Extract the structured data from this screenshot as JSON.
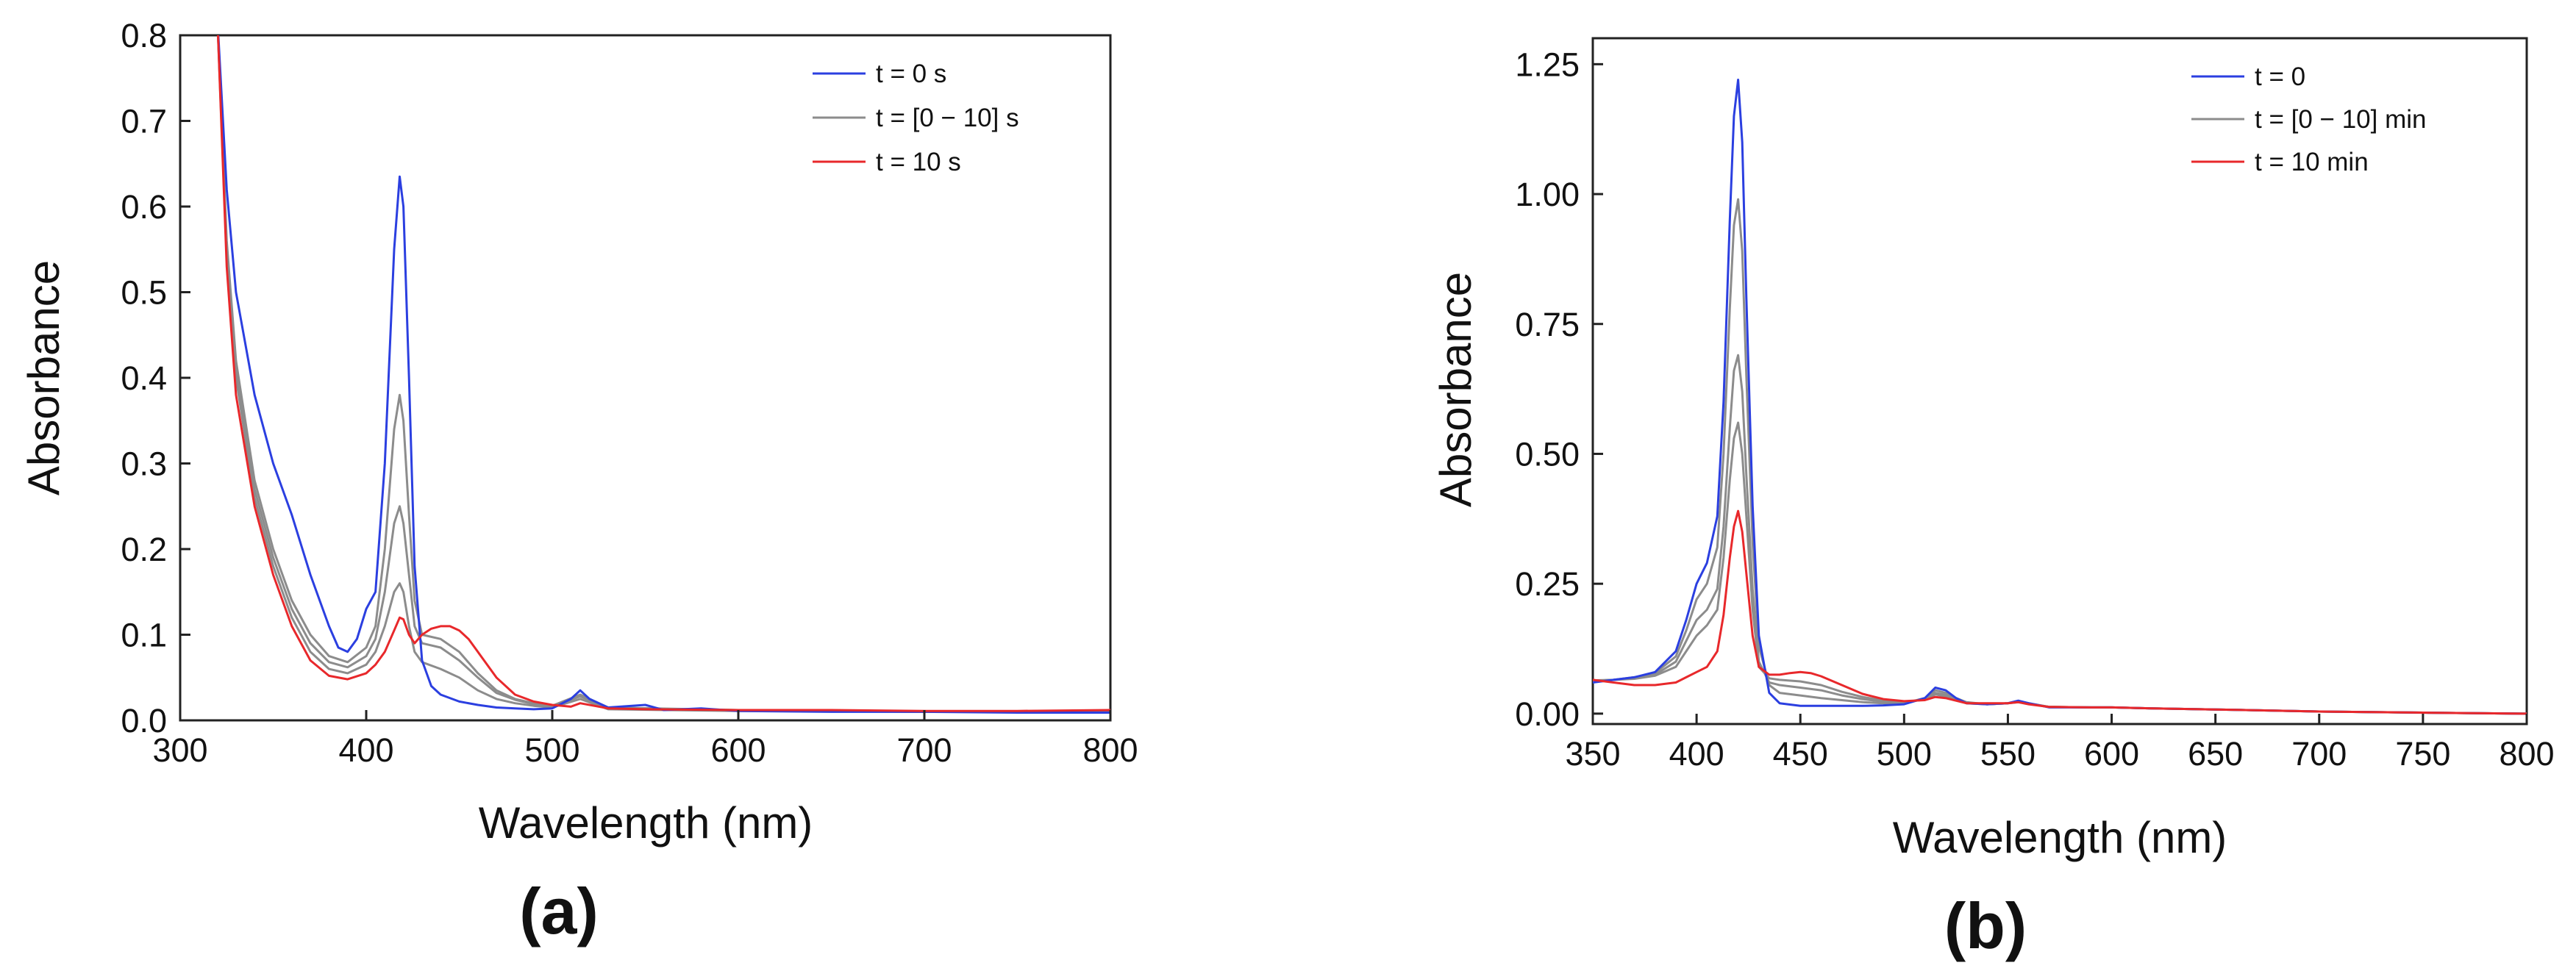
{
  "chart_data": [
    {
      "type": "line",
      "panel_label": "(a)",
      "xlabel": "Wavelength (nm)",
      "ylabel": "Absorbance",
      "xlim": [
        300,
        800
      ],
      "ylim": [
        0,
        0.8
      ],
      "xticks": [
        300,
        400,
        500,
        600,
        700,
        800
      ],
      "xtick_labels": [
        "300",
        "400",
        "500",
        "600",
        "700",
        "800"
      ],
      "yticks": [
        0,
        0.1,
        0.2,
        0.3,
        0.4,
        0.5,
        0.6,
        0.7,
        0.8
      ],
      "ytick_labels": [
        "0.0",
        "0.1",
        "0.2",
        "0.3",
        "0.4",
        "0.5",
        "0.6",
        "0.7",
        "0.8"
      ],
      "legend": {
        "placement": "top-right",
        "entries": [
          {
            "label": "t = 0 s",
            "color": "#2b3fe0"
          },
          {
            "label": "t = [0 − 10] s",
            "color": "#8c8c8c"
          },
          {
            "label": "t = 10 s",
            "color": "#e8282b"
          }
        ]
      },
      "series": [
        {
          "name": "t = 0 s",
          "color": "#2b3fe0",
          "x": [
            320,
            325,
            330,
            340,
            350,
            360,
            370,
            380,
            385,
            390,
            395,
            400,
            405,
            410,
            415,
            418,
            420,
            423,
            426,
            430,
            435,
            440,
            450,
            460,
            470,
            480,
            490,
            500,
            510,
            515,
            520,
            530,
            550,
            560,
            580,
            600,
            650,
            700,
            750,
            800
          ],
          "y": [
            0.82,
            0.62,
            0.5,
            0.38,
            0.3,
            0.24,
            0.17,
            0.11,
            0.085,
            0.08,
            0.095,
            0.13,
            0.15,
            0.3,
            0.55,
            0.635,
            0.6,
            0.4,
            0.18,
            0.07,
            0.04,
            0.03,
            0.022,
            0.018,
            0.015,
            0.014,
            0.013,
            0.014,
            0.025,
            0.035,
            0.025,
            0.015,
            0.018,
            0.012,
            0.014,
            0.011,
            0.01,
            0.01,
            0.009,
            0.009
          ]
        },
        {
          "name": "t = [0 − 10] s (1)",
          "color": "#8c8c8c",
          "x": [
            320,
            325,
            330,
            340,
            350,
            360,
            370,
            380,
            390,
            400,
            405,
            410,
            415,
            418,
            420,
            423,
            426,
            430,
            440,
            450,
            460,
            470,
            480,
            490,
            500,
            515,
            530,
            600,
            700,
            800
          ],
          "y": [
            0.82,
            0.56,
            0.42,
            0.28,
            0.2,
            0.14,
            0.1,
            0.075,
            0.068,
            0.085,
            0.11,
            0.2,
            0.34,
            0.38,
            0.35,
            0.24,
            0.14,
            0.1,
            0.095,
            0.08,
            0.055,
            0.035,
            0.025,
            0.02,
            0.017,
            0.03,
            0.015,
            0.012,
            0.01,
            0.01
          ]
        },
        {
          "name": "t = [0 − 10] s (2)",
          "color": "#8c8c8c",
          "x": [
            320,
            325,
            330,
            340,
            350,
            360,
            370,
            380,
            390,
            400,
            405,
            410,
            415,
            418,
            420,
            423,
            426,
            430,
            440,
            450,
            460,
            470,
            480,
            490,
            500,
            515,
            530,
            600,
            700,
            800
          ],
          "y": [
            0.82,
            0.55,
            0.41,
            0.27,
            0.19,
            0.13,
            0.09,
            0.068,
            0.062,
            0.075,
            0.095,
            0.15,
            0.23,
            0.25,
            0.23,
            0.17,
            0.11,
            0.09,
            0.085,
            0.07,
            0.05,
            0.032,
            0.024,
            0.019,
            0.016,
            0.028,
            0.014,
            0.012,
            0.01,
            0.01
          ]
        },
        {
          "name": "t = [0 − 10] s (3)",
          "color": "#8c8c8c",
          "x": [
            320,
            325,
            330,
            340,
            350,
            360,
            370,
            380,
            390,
            400,
            405,
            410,
            415,
            418,
            420,
            423,
            426,
            430,
            440,
            450,
            460,
            470,
            480,
            490,
            500,
            515,
            530,
            600,
            700,
            800
          ],
          "y": [
            0.82,
            0.54,
            0.4,
            0.26,
            0.18,
            0.12,
            0.08,
            0.06,
            0.055,
            0.065,
            0.08,
            0.11,
            0.15,
            0.16,
            0.15,
            0.11,
            0.08,
            0.068,
            0.06,
            0.05,
            0.035,
            0.025,
            0.02,
            0.017,
            0.015,
            0.025,
            0.013,
            0.011,
            0.01,
            0.01
          ]
        },
        {
          "name": "t = 10 s",
          "color": "#e8282b",
          "x": [
            320,
            325,
            330,
            340,
            350,
            360,
            370,
            380,
            390,
            400,
            405,
            410,
            415,
            418,
            420,
            423,
            426,
            430,
            435,
            440,
            445,
            450,
            455,
            460,
            470,
            480,
            490,
            500,
            510,
            515,
            530,
            550,
            600,
            650,
            700,
            750,
            800
          ],
          "y": [
            0.82,
            0.53,
            0.38,
            0.25,
            0.17,
            0.11,
            0.07,
            0.052,
            0.048,
            0.055,
            0.065,
            0.08,
            0.105,
            0.12,
            0.118,
            0.1,
            0.09,
            0.1,
            0.107,
            0.11,
            0.11,
            0.105,
            0.095,
            0.08,
            0.05,
            0.03,
            0.022,
            0.018,
            0.016,
            0.02,
            0.014,
            0.013,
            0.012,
            0.012,
            0.011,
            0.011,
            0.012
          ]
        }
      ]
    },
    {
      "type": "line",
      "panel_label": "(b)",
      "xlabel": "Wavelength (nm)",
      "ylabel": "Absorbance",
      "xlim": [
        350,
        800
      ],
      "ylim": [
        -0.02,
        1.3
      ],
      "xticks": [
        350,
        400,
        450,
        500,
        550,
        600,
        650,
        700,
        750,
        800
      ],
      "xtick_labels": [
        "350",
        "400",
        "450",
        "500",
        "550",
        "600",
        "650",
        "700",
        "750",
        "800"
      ],
      "yticks": [
        0,
        0.25,
        0.5,
        0.75,
        1.0,
        1.25
      ],
      "ytick_labels": [
        "0.00",
        "0.25",
        "0.50",
        "0.75",
        "1.00",
        "1.25"
      ],
      "legend": {
        "placement": "top-right",
        "entries": [
          {
            "label": "t = 0",
            "color": "#2b3fe0"
          },
          {
            "label": "t = [0 − 10] min",
            "color": "#8c8c8c"
          },
          {
            "label": "t = 10 min",
            "color": "#e8282b"
          }
        ]
      },
      "series": [
        {
          "name": "t = 0",
          "color": "#2b3fe0",
          "x": [
            350,
            360,
            370,
            380,
            390,
            395,
            400,
            405,
            410,
            413,
            416,
            418,
            420,
            422,
            424,
            427,
            430,
            435,
            440,
            450,
            460,
            470,
            480,
            490,
            500,
            510,
            515,
            520,
            525,
            530,
            540,
            550,
            555,
            560,
            570,
            590,
            600,
            620,
            650,
            700,
            750,
            800
          ],
          "y": [
            0.06,
            0.065,
            0.07,
            0.08,
            0.12,
            0.18,
            0.25,
            0.29,
            0.38,
            0.6,
            0.95,
            1.15,
            1.22,
            1.1,
            0.8,
            0.4,
            0.15,
            0.04,
            0.02,
            0.015,
            0.015,
            0.015,
            0.015,
            0.016,
            0.018,
            0.03,
            0.05,
            0.045,
            0.03,
            0.02,
            0.018,
            0.02,
            0.025,
            0.02,
            0.012,
            0.012,
            0.012,
            0.01,
            0.008,
            0.004,
            0.002,
            0.0
          ]
        },
        {
          "name": "t = [0 − 10] min (1)",
          "color": "#8c8c8c",
          "x": [
            350,
            360,
            370,
            380,
            390,
            395,
            400,
            405,
            410,
            413,
            416,
            418,
            420,
            422,
            424,
            427,
            430,
            435,
            440,
            450,
            460,
            470,
            480,
            490,
            500,
            510,
            515,
            520,
            525,
            530,
            540,
            550,
            555,
            560,
            570,
            590,
            600,
            620,
            650,
            700,
            750,
            800
          ],
          "y": [
            0.062,
            0.065,
            0.07,
            0.078,
            0.11,
            0.16,
            0.22,
            0.25,
            0.32,
            0.5,
            0.78,
            0.94,
            0.99,
            0.89,
            0.65,
            0.33,
            0.13,
            0.055,
            0.04,
            0.035,
            0.03,
            0.026,
            0.022,
            0.02,
            0.02,
            0.03,
            0.045,
            0.04,
            0.03,
            0.022,
            0.018,
            0.02,
            0.024,
            0.02,
            0.013,
            0.012,
            0.012,
            0.01,
            0.008,
            0.004,
            0.002,
            0.0
          ]
        },
        {
          "name": "t = [0 − 10] min (2)",
          "color": "#8c8c8c",
          "x": [
            350,
            360,
            370,
            380,
            390,
            395,
            400,
            405,
            410,
            413,
            416,
            418,
            420,
            422,
            424,
            427,
            430,
            435,
            440,
            450,
            460,
            470,
            480,
            490,
            500,
            510,
            515,
            520,
            525,
            530,
            540,
            550,
            555,
            560,
            570,
            590,
            600,
            620,
            650,
            700,
            750,
            800
          ],
          "y": [
            0.063,
            0.065,
            0.068,
            0.075,
            0.1,
            0.14,
            0.18,
            0.2,
            0.24,
            0.36,
            0.55,
            0.66,
            0.69,
            0.62,
            0.46,
            0.24,
            0.1,
            0.06,
            0.055,
            0.05,
            0.045,
            0.035,
            0.028,
            0.023,
            0.021,
            0.028,
            0.04,
            0.036,
            0.028,
            0.021,
            0.018,
            0.02,
            0.023,
            0.019,
            0.013,
            0.012,
            0.012,
            0.01,
            0.008,
            0.004,
            0.002,
            0.0
          ]
        },
        {
          "name": "t = [0 − 10] min (3)",
          "color": "#8c8c8c",
          "x": [
            350,
            360,
            370,
            380,
            390,
            395,
            400,
            405,
            410,
            413,
            416,
            418,
            420,
            422,
            424,
            427,
            430,
            435,
            440,
            450,
            460,
            470,
            480,
            490,
            500,
            510,
            515,
            520,
            525,
            530,
            540,
            550,
            555,
            560,
            570,
            590,
            600,
            620,
            650,
            700,
            750,
            800
          ],
          "y": [
            0.064,
            0.065,
            0.067,
            0.073,
            0.09,
            0.12,
            0.15,
            0.17,
            0.2,
            0.3,
            0.45,
            0.53,
            0.56,
            0.5,
            0.38,
            0.2,
            0.09,
            0.068,
            0.065,
            0.062,
            0.055,
            0.042,
            0.032,
            0.025,
            0.022,
            0.027,
            0.037,
            0.033,
            0.026,
            0.02,
            0.018,
            0.02,
            0.022,
            0.019,
            0.013,
            0.012,
            0.012,
            0.01,
            0.008,
            0.004,
            0.002,
            0.0
          ]
        },
        {
          "name": "t = 10 min",
          "color": "#e8282b",
          "x": [
            350,
            360,
            370,
            380,
            390,
            395,
            400,
            405,
            410,
            413,
            416,
            418,
            420,
            422,
            424,
            427,
            430,
            435,
            440,
            445,
            450,
            455,
            460,
            470,
            480,
            490,
            500,
            510,
            515,
            520,
            530,
            550,
            555,
            560,
            570,
            590,
            600,
            620,
            650,
            700,
            750,
            800
          ],
          "y": [
            0.065,
            0.06,
            0.055,
            0.055,
            0.06,
            0.07,
            0.08,
            0.09,
            0.12,
            0.19,
            0.3,
            0.36,
            0.39,
            0.35,
            0.27,
            0.15,
            0.09,
            0.075,
            0.075,
            0.078,
            0.08,
            0.078,
            0.072,
            0.055,
            0.038,
            0.028,
            0.024,
            0.026,
            0.032,
            0.03,
            0.02,
            0.02,
            0.022,
            0.018,
            0.013,
            0.012,
            0.012,
            0.01,
            0.008,
            0.004,
            0.002,
            0.0
          ]
        }
      ]
    }
  ]
}
